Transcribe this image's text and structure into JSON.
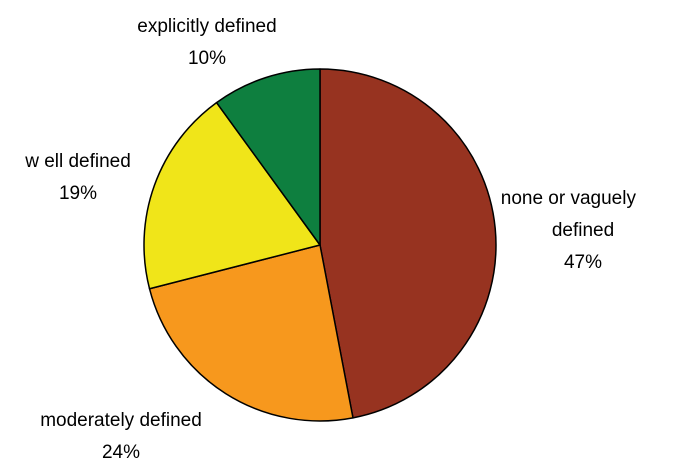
{
  "chart_data": {
    "type": "pie",
    "slices": [
      {
        "label": "none or vaguely defined",
        "value": 47,
        "value_label": "47%",
        "color": "#973320"
      },
      {
        "label": "moderately defined",
        "value": 24,
        "value_label": "24%",
        "color": "#F7981D"
      },
      {
        "label": "w ell defined",
        "value": 19,
        "value_label": "19%",
        "color": "#F0E519"
      },
      {
        "label": "explicitly defined",
        "value": 10,
        "value_label": "10%",
        "color": "#0E7F3F"
      }
    ],
    "start_angle": "12 o'clock",
    "direction": "clockwise",
    "legend": "none",
    "labels": "outside slices"
  }
}
